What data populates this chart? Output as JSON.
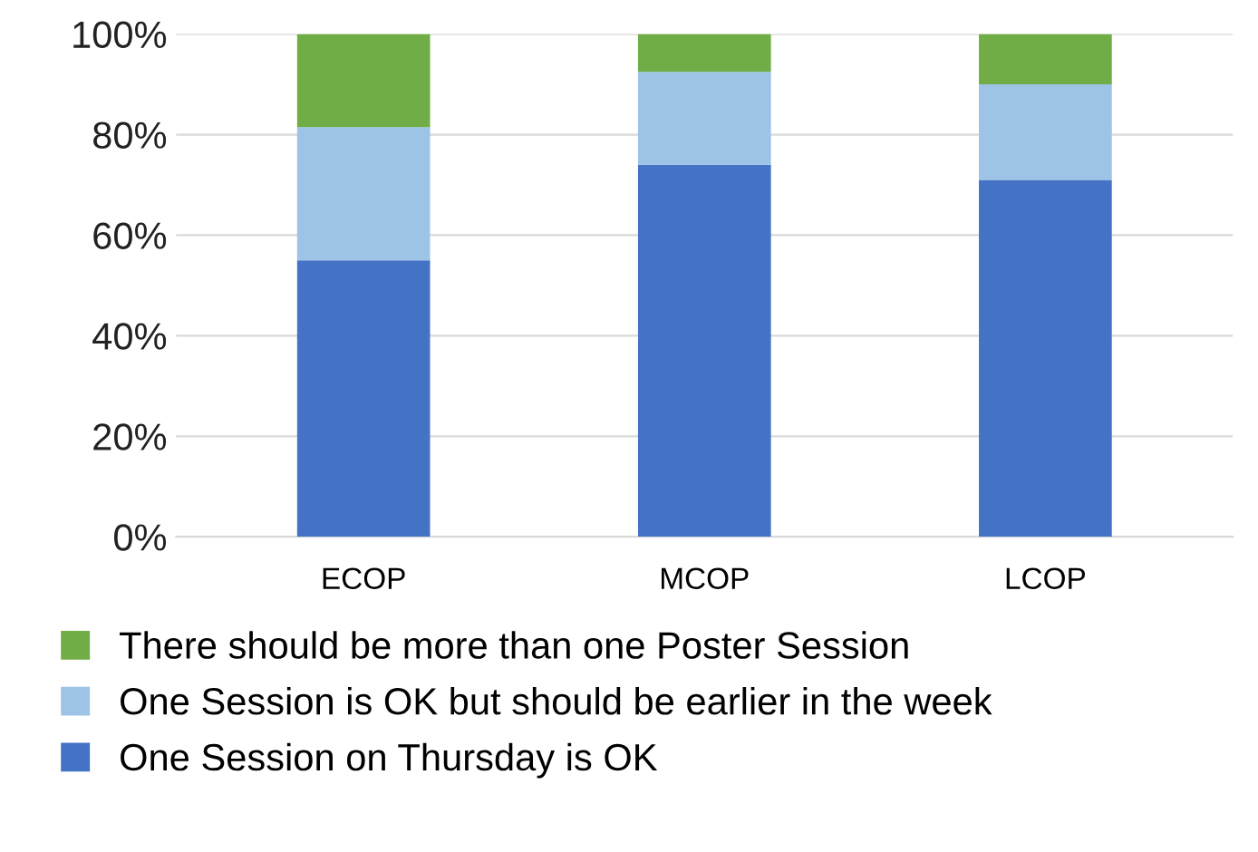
{
  "chart_data": {
    "type": "bar",
    "stacked": true,
    "categories": [
      "ECOP",
      "MCOP",
      "LCOP"
    ],
    "series": [
      {
        "name": "One Session on Thursday is OK",
        "color": "#4472c4",
        "values": [
          55,
          74,
          71
        ]
      },
      {
        "name": "One Session is OK but should be earlier in the week",
        "color": "#9dc3e6",
        "values": [
          26.5,
          18.5,
          19
        ]
      },
      {
        "name": "There should be more than one Poster Session",
        "color": "#70ad47",
        "values": [
          18.5,
          7.5,
          10
        ]
      }
    ],
    "ylim": [
      0,
      100
    ],
    "yticks": [
      {
        "value": 0,
        "label": "0%"
      },
      {
        "value": 20,
        "label": "20%"
      },
      {
        "value": 40,
        "label": "40%"
      },
      {
        "value": 60,
        "label": "60%"
      },
      {
        "value": 80,
        "label": "80%"
      },
      {
        "value": 100,
        "label": "100%"
      }
    ],
    "grid": "y",
    "legend": "bottom"
  }
}
